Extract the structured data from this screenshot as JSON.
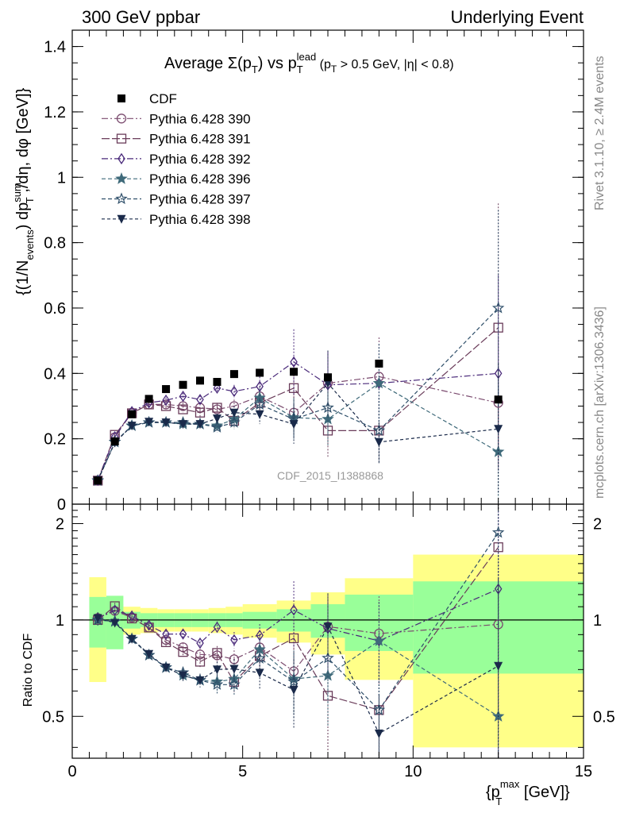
{
  "header": {
    "left": "300 GeV ppbar",
    "right": "Underlying Event"
  },
  "side_labels": {
    "top": "Rivet 3.1.10, ≥ 2.4M events",
    "bottom": "mcplots.cern.ch [arXiv:1306.3436]"
  },
  "watermark": "CDF_2015_I1388868",
  "title": {
    "main": "Average Σ(p",
    "sub_T": "T",
    "close": ") vs p",
    "sub_T2": "T",
    "sup_lead": "lead",
    "cut_pre": " (p",
    "sub_T3": "T",
    "cut_post": " > 0.5 GeV, |η| < 0.8)"
  },
  "y_label_top": {
    "a": "{(1/N",
    "a_sub": "events",
    "b": ") dp",
    "b_sup": "sum",
    "b_sub": "T",
    "c": " ,/dη, dφ [GeV]}"
  },
  "y_label_bottom": "Ratio to CDF",
  "x_label": {
    "a": "{p",
    "a_sup": "max",
    "a_sub": "T",
    "b": " [GeV]}"
  },
  "colors": {
    "cdf": "#000000",
    "band_inner": "#99ff99",
    "band_outer": "#ffff88",
    "p390": "#7a4a6e",
    "p391": "#6a3c5a",
    "p392": "#4a2a7a",
    "p396": "#3f6a7a",
    "p397": "#2f4f6a",
    "p398": "#1a2a4a"
  },
  "chart_data": {
    "type": "scatter",
    "x_axis": {
      "range": [
        0,
        15
      ],
      "ticks": [
        0,
        5,
        10,
        15
      ],
      "label": "{p_T^max [GeV]}"
    },
    "y_axis_top": {
      "range": [
        0,
        1.45
      ],
      "ticks": [
        0,
        0.2,
        0.4,
        0.6,
        0.8,
        1,
        1.2,
        1.4
      ],
      "tick_labels": [
        "0",
        "0.2",
        "0.4",
        "0.6",
        "0.8",
        "1",
        "1.2",
        "1.4"
      ]
    },
    "y_axis_ratio": {
      "range": [
        0.37,
        2.3
      ],
      "scale": "log",
      "ticks": [
        0.5,
        1,
        2
      ],
      "tick_labels": [
        "0.5",
        "1",
        "2"
      ]
    },
    "legend_position": "top-left",
    "x": [
      0.75,
      1.25,
      1.75,
      2.25,
      2.75,
      3.25,
      3.75,
      4.25,
      4.75,
      5.5,
      6.5,
      7.5,
      9.0,
      12.5
    ],
    "x_err": [
      0.25,
      0.25,
      0.25,
      0.25,
      0.25,
      0.25,
      0.25,
      0.25,
      0.25,
      0.5,
      0.5,
      0.5,
      1.0,
      2.5
    ],
    "cdf": {
      "name": "CDF",
      "values": [
        0.072,
        0.192,
        0.275,
        0.322,
        0.352,
        0.365,
        0.378,
        0.374,
        0.398,
        0.402,
        0.405,
        0.388,
        0.43,
        0.32
      ],
      "ratio_band_inner": [
        0.18,
        0.19,
        0.06,
        0.05,
        0.05,
        0.05,
        0.05,
        0.05,
        0.05,
        0.06,
        0.08,
        0.12,
        0.2,
        0.32,
        0.34
      ],
      "ratio_band_outer": [
        0.36,
        0.12,
        0.1,
        0.09,
        0.08,
        0.08,
        0.08,
        0.09,
        0.1,
        0.12,
        0.15,
        0.22,
        0.35,
        0.6,
        0.62
      ]
    },
    "series": [
      {
        "name": "Pythia 6.428 390",
        "marker": "open-circle",
        "dash": "8,3,2,3",
        "color_key": "p390",
        "values": [
          0.073,
          0.205,
          0.28,
          0.305,
          0.305,
          0.3,
          0.295,
          0.29,
          0.3,
          0.33,
          0.28,
          0.37,
          0.39,
          0.31
        ],
        "errors": [
          0.003,
          0.005,
          0.006,
          0.007,
          0.008,
          0.01,
          0.012,
          0.015,
          0.02,
          0.03,
          0.06,
          0.08,
          0.12,
          0.2
        ]
      },
      {
        "name": "Pythia 6.428 391",
        "marker": "open-square",
        "dash": "10,3",
        "color_key": "p391",
        "values": [
          0.072,
          0.212,
          0.278,
          0.305,
          0.3,
          0.29,
          0.28,
          0.295,
          0.255,
          0.31,
          0.355,
          0.225,
          0.225,
          0.54
        ],
        "errors": [
          0.003,
          0.005,
          0.006,
          0.007,
          0.008,
          0.01,
          0.012,
          0.015,
          0.02,
          0.03,
          0.06,
          0.08,
          0.1,
          0.38
        ]
      },
      {
        "name": "Pythia 6.428 392",
        "marker": "open-diamond",
        "dash": "8,3,2,3",
        "color_key": "p392",
        "values": [
          0.073,
          0.206,
          0.283,
          0.31,
          0.318,
          0.33,
          0.32,
          0.355,
          0.345,
          0.36,
          0.435,
          0.365,
          0.37,
          0.4
        ],
        "errors": [
          0.003,
          0.005,
          0.006,
          0.007,
          0.008,
          0.01,
          0.012,
          0.015,
          0.02,
          0.03,
          0.1,
          0.1,
          0.12,
          0.3
        ]
      },
      {
        "name": "Pythia 6.428 396",
        "marker": "filled-star",
        "dash": "5,3",
        "color_key": "p396",
        "values": [
          0.072,
          0.19,
          0.24,
          0.25,
          0.25,
          0.245,
          0.245,
          0.24,
          0.26,
          0.325,
          0.265,
          0.26,
          0.37,
          0.16
        ],
        "errors": [
          0.003,
          0.005,
          0.006,
          0.007,
          0.008,
          0.01,
          0.012,
          0.015,
          0.02,
          0.03,
          0.06,
          0.08,
          0.12,
          0.2
        ]
      },
      {
        "name": "Pythia 6.428 397",
        "marker": "open-star",
        "dash": "5,3",
        "color_key": "p397",
        "values": [
          0.072,
          0.19,
          0.24,
          0.25,
          0.25,
          0.25,
          0.245,
          0.235,
          0.25,
          0.305,
          0.26,
          0.295,
          0.225,
          0.6
        ],
        "errors": [
          0.003,
          0.005,
          0.006,
          0.007,
          0.008,
          0.01,
          0.012,
          0.015,
          0.02,
          0.03,
          0.06,
          0.08,
          0.1,
          0.3
        ]
      },
      {
        "name": "Pythia 6.428 398",
        "marker": "filled-triangle-down",
        "dash": "4,3",
        "color_key": "p398",
        "values": [
          0.073,
          0.188,
          0.24,
          0.252,
          0.25,
          0.245,
          0.245,
          0.262,
          0.28,
          0.275,
          0.245,
          0.37,
          0.19,
          0.23
        ],
        "errors": [
          0.003,
          0.005,
          0.006,
          0.007,
          0.008,
          0.01,
          0.012,
          0.015,
          0.02,
          0.03,
          0.06,
          0.1,
          0.06,
          0.2
        ]
      }
    ]
  }
}
